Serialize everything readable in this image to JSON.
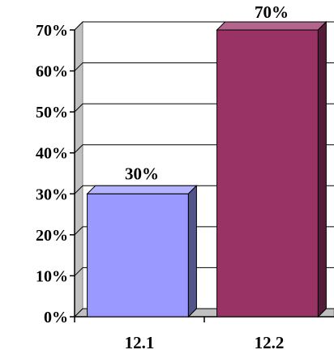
{
  "chart_data": {
    "type": "bar",
    "categories": [
      "12.1",
      "12.2"
    ],
    "values": [
      30,
      70
    ],
    "data_labels": [
      "30%",
      "70%"
    ],
    "ylim": [
      0,
      70
    ],
    "yticks": [
      "0%",
      "10%",
      "20%",
      "30%",
      "40%",
      "50%",
      "60%",
      "70%"
    ],
    "grid": true,
    "legend": "none",
    "style": "3d",
    "title": "",
    "xlabel": "",
    "ylabel": "",
    "colors": [
      "#9999ff",
      "#993366"
    ]
  }
}
